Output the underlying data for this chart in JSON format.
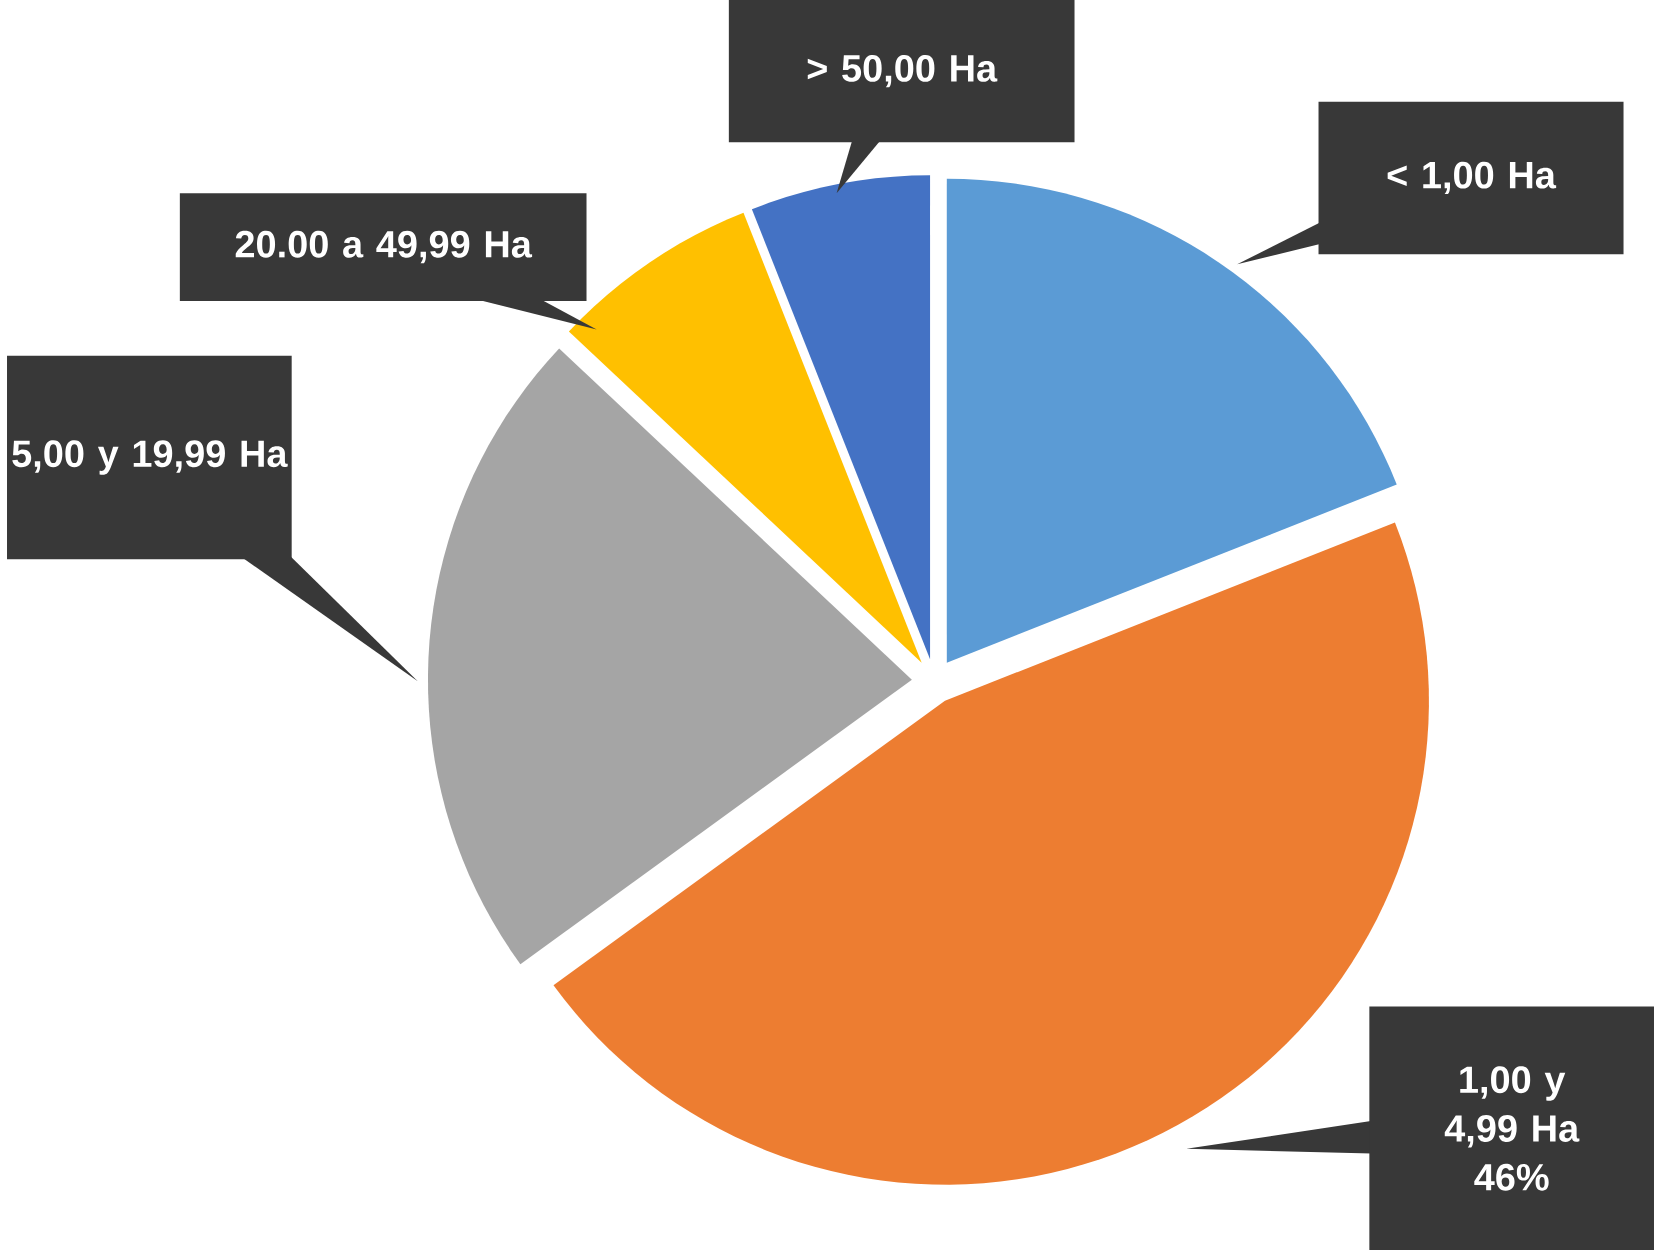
{
  "chart_data": {
    "type": "pie",
    "categories": [
      "< 1,00 Ha",
      "1,00 y 4,99 Ha",
      "5,00 y 19,99 Ha",
      "20.00 a 49,99 Ha",
      "> 50,00 Ha"
    ],
    "values": [
      19,
      46,
      22,
      7,
      6
    ],
    "value_labels": [
      null,
      "46%",
      null,
      null,
      null
    ],
    "colors": [
      "#5b9bd5",
      "#ed7d31",
      "#a5a5a5",
      "#ffc000",
      "#4472c4"
    ]
  }
}
